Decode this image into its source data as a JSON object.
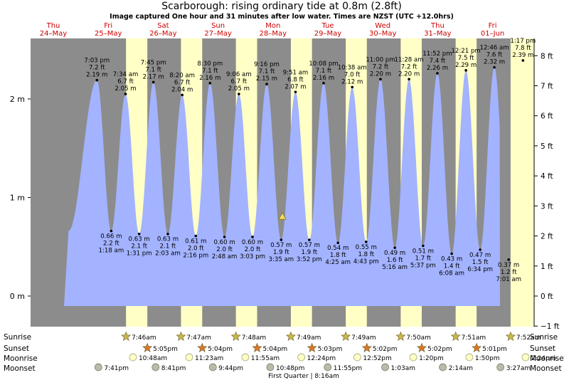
{
  "title": "Scarborough: rising  ordinary tide at 0.8m (2.8ft)",
  "subtitle": "Image captured One hour and 31 minutes after low water. Times are NZST (UTC +12.0hrs)",
  "colors": {
    "night": "#8c8c8c",
    "day": "#ffffc6",
    "water": "#a3b3ff",
    "day_label": "#cc0000",
    "sunrise_star": "#c8b84a",
    "sunset_star": "#d8782a",
    "moonrise": "#ffffc6",
    "moonset": "#b8bca8"
  },
  "days": [
    {
      "dow": "Thu",
      "date": "24–May"
    },
    {
      "dow": "Fri",
      "date": "25–May"
    },
    {
      "dow": "Sat",
      "date": "26–May"
    },
    {
      "dow": "Sun",
      "date": "27–May"
    },
    {
      "dow": "Mon",
      "date": "28–May"
    },
    {
      "dow": "Tue",
      "date": "29–May"
    },
    {
      "dow": "Wed",
      "date": "30–May"
    },
    {
      "dow": "Thu",
      "date": "31–May"
    },
    {
      "dow": "Fri",
      "date": "01–Jun"
    }
  ],
  "row_labels": {
    "sunrise": "Sunrise",
    "sunset": "Sunset",
    "moonrise": "Moonrise",
    "moonset": "Moonset"
  },
  "sunrise": [
    "7:46am",
    "7:47am",
    "7:48am",
    "7:49am",
    "7:49am",
    "7:50am",
    "7:51am",
    "7:52am"
  ],
  "sunset": [
    "5:05pm",
    "5:04pm",
    "5:04pm",
    "5:03pm",
    "5:02pm",
    "5:02pm",
    "5:01pm"
  ],
  "moonrise": [
    "10:48am",
    "11:23am",
    "11:55am",
    "12:24pm",
    "12:52pm",
    "1:20pm",
    "1:50pm",
    "2:24pm"
  ],
  "moonset": [
    "7:41pm",
    "8:41pm",
    "9:44pm",
    "10:48pm",
    "11:55pm",
    "1:03am",
    "2:14am",
    "3:27am"
  ],
  "moon_phase_label": "First Quarter | 8:16am",
  "chart_data": {
    "type": "area",
    "title": "Scarborough: rising  ordinary tide at 0.8m (2.8ft)",
    "y_unit_left": "m",
    "y_unit_right": "ft",
    "left_ticks": [
      "0 m",
      "1 m",
      "2 m"
    ],
    "right_ticks": [
      "−1 ft",
      "0 ft",
      "1 ft",
      "2 ft",
      "3 ft",
      "4 ft",
      "5 ft",
      "6 ft",
      "7 ft",
      "8 ft"
    ],
    "current": {
      "height_m": 0.8,
      "height_ft": 2.8
    },
    "tides": [
      {
        "type": "high",
        "time": "7:03 pm",
        "m": 2.19,
        "ft": "7.2 ft",
        "m_label": "2.19 m"
      },
      {
        "type": "low",
        "time": "1:18 am",
        "m": 0.66,
        "ft": "2.2 ft",
        "m_label": "0.66 m"
      },
      {
        "type": "high",
        "time": "7:34 am",
        "m": 2.05,
        "ft": "6.7 ft",
        "m_label": "2.05 m"
      },
      {
        "type": "low",
        "time": "1:31 pm",
        "m": 0.63,
        "ft": "2.1 ft",
        "m_label": "0.63 m"
      },
      {
        "type": "high",
        "time": "7:45 pm",
        "m": 2.17,
        "ft": "7.1 ft",
        "m_label": "2.17 m"
      },
      {
        "type": "low",
        "time": "2:03 am",
        "m": 0.63,
        "ft": "2.1 ft",
        "m_label": "0.63 m"
      },
      {
        "type": "high",
        "time": "8:20 am",
        "m": 2.04,
        "ft": "6.7 ft",
        "m_label": "2.04 m"
      },
      {
        "type": "low",
        "time": "2:16 pm",
        "m": 0.61,
        "ft": "2.0 ft",
        "m_label": "0.61 m"
      },
      {
        "type": "high",
        "time": "8:30 pm",
        "m": 2.16,
        "ft": "7.1 ft",
        "m_label": "2.16 m"
      },
      {
        "type": "low",
        "time": "2:48 am",
        "m": 0.6,
        "ft": "2.0 ft",
        "m_label": "0.60 m"
      },
      {
        "type": "high",
        "time": "9:06 am",
        "m": 2.05,
        "ft": "6.7 ft",
        "m_label": "2.05 m"
      },
      {
        "type": "low",
        "time": "3:03 pm",
        "m": 0.6,
        "ft": "2.0 ft",
        "m_label": "0.60 m"
      },
      {
        "type": "high",
        "time": "9:16 pm",
        "m": 2.15,
        "ft": "7.1 ft",
        "m_label": "2.15 m"
      },
      {
        "type": "low",
        "time": "3:35 am",
        "m": 0.57,
        "ft": "1.9 ft",
        "m_label": "0.57 m"
      },
      {
        "type": "high",
        "time": "9:51 am",
        "m": 2.07,
        "ft": "6.8 ft",
        "m_label": "2.07 m"
      },
      {
        "type": "low",
        "time": "3:52 pm",
        "m": 0.57,
        "ft": "1.9 ft",
        "m_label": "0.57 m"
      },
      {
        "type": "high",
        "time": "10:08 pm",
        "m": 2.16,
        "ft": "7.1 ft",
        "m_label": "2.16 m"
      },
      {
        "type": "low",
        "time": "4:25 am",
        "m": 0.54,
        "ft": "1.8 ft",
        "m_label": "0.54 m"
      },
      {
        "type": "high",
        "time": "10:38 am",
        "m": 2.12,
        "ft": "7.0 ft",
        "m_label": "2.12 m"
      },
      {
        "type": "low",
        "time": "4:43 pm",
        "m": 0.55,
        "ft": "1.8 ft",
        "m_label": "0.55 m"
      },
      {
        "type": "high",
        "time": "11:00 pm",
        "m": 2.2,
        "ft": "7.2 ft",
        "m_label": "2.20 m"
      },
      {
        "type": "low",
        "time": "5:16 am",
        "m": 0.49,
        "ft": "1.6 ft",
        "m_label": "0.49 m"
      },
      {
        "type": "high",
        "time": "11:28 am",
        "m": 2.2,
        "ft": "7.2 ft",
        "m_label": "2.20 m"
      },
      {
        "type": "low",
        "time": "5:37 pm",
        "m": 0.51,
        "ft": "1.7 ft",
        "m_label": "0.51 m"
      },
      {
        "type": "high",
        "time": "11:52 pm",
        "m": 2.26,
        "ft": "7.4 ft",
        "m_label": "2.26 m"
      },
      {
        "type": "low",
        "time": "6:08 am",
        "m": 0.43,
        "ft": "1.4 ft",
        "m_label": "0.43 m"
      },
      {
        "type": "high",
        "time": "12:21 pm",
        "m": 2.29,
        "ft": "7.5 ft",
        "m_label": "2.29 m"
      },
      {
        "type": "low",
        "time": "6:34 pm",
        "m": 0.47,
        "ft": "1.5 ft",
        "m_label": "0.47 m"
      },
      {
        "type": "high",
        "time": "12:46 am",
        "m": 2.32,
        "ft": "7.6 ft",
        "m_label": "2.32 m"
      },
      {
        "type": "low",
        "time": "7:01 am",
        "m": 0.37,
        "ft": "1.2 ft",
        "m_label": "0.37 m"
      },
      {
        "type": "high",
        "time": "1:17 pm",
        "m": 2.39,
        "ft": "7.8 ft",
        "m_label": "2.39 m"
      }
    ]
  }
}
